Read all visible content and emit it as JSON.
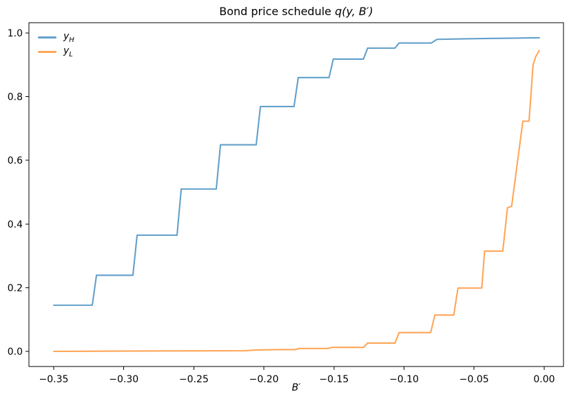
{
  "figure": {
    "title_text": "Bond price schedule ",
    "title_math": "q(y, B′)",
    "xlabel": "B′"
  },
  "chart_data": {
    "type": "line",
    "title": "Bond price schedule q(y, B′)",
    "xlabel": "B′",
    "ylabel": "",
    "grid": false,
    "xlim": [
      -0.3677,
      0.0138
    ],
    "ylim": [
      -0.0475,
      1.0324
    ],
    "x_ticks": [
      {
        "value": -0.35,
        "label": "−0.35"
      },
      {
        "value": -0.3,
        "label": "−0.30"
      },
      {
        "value": -0.25,
        "label": "−0.25"
      },
      {
        "value": -0.2,
        "label": "−0.20"
      },
      {
        "value": -0.15,
        "label": "−0.15"
      },
      {
        "value": -0.1,
        "label": "−0.10"
      },
      {
        "value": -0.05,
        "label": "−0.05"
      },
      {
        "value": 0.0,
        "label": "0.00"
      }
    ],
    "y_ticks": [
      {
        "value": 0.0,
        "label": "0.0"
      },
      {
        "value": 0.2,
        "label": "0.2"
      },
      {
        "value": 0.4,
        "label": "0.4"
      },
      {
        "value": 0.6,
        "label": "0.6"
      },
      {
        "value": 0.8,
        "label": "0.8"
      },
      {
        "value": 1.0,
        "label": "1.0"
      }
    ],
    "legend": {
      "position": "upper-left",
      "frame": false,
      "entries": [
        {
          "label_main": "y",
          "label_sub": "H",
          "color": "#62a0cb"
        },
        {
          "label_main": "y",
          "label_sub": "L",
          "color": "#ffa557"
        }
      ]
    },
    "series": [
      {
        "name": "y_H",
        "color": "#62a0cb",
        "linewidth": 2.1,
        "points": [
          [
            -0.35,
            0.145
          ],
          [
            -0.3225,
            0.145
          ],
          [
            -0.3195,
            0.239
          ],
          [
            -0.2935,
            0.239
          ],
          [
            -0.2905,
            0.365
          ],
          [
            -0.262,
            0.365
          ],
          [
            -0.259,
            0.51
          ],
          [
            -0.234,
            0.51
          ],
          [
            -0.231,
            0.649
          ],
          [
            -0.2055,
            0.649
          ],
          [
            -0.2025,
            0.769
          ],
          [
            -0.1785,
            0.769
          ],
          [
            -0.1755,
            0.86
          ],
          [
            -0.1535,
            0.86
          ],
          [
            -0.1505,
            0.918
          ],
          [
            -0.129,
            0.918
          ],
          [
            -0.126,
            0.9525
          ],
          [
            -0.1065,
            0.9525
          ],
          [
            -0.1035,
            0.9685
          ],
          [
            -0.0805,
            0.9685
          ],
          [
            -0.0765,
            0.98
          ],
          [
            -0.0595,
            0.9815
          ],
          [
            -0.044,
            0.9825
          ],
          [
            -0.02,
            0.984
          ],
          [
            -0.0035,
            0.985
          ]
        ]
      },
      {
        "name": "y_L",
        "color": "#ffa557",
        "linewidth": 2.1,
        "points": [
          [
            -0.35,
            0.0
          ],
          [
            -0.3,
            0.001
          ],
          [
            -0.26,
            0.0015
          ],
          [
            -0.213,
            0.002
          ],
          [
            -0.205,
            0.0045
          ],
          [
            -0.19,
            0.0055
          ],
          [
            -0.1775,
            0.0055
          ],
          [
            -0.175,
            0.009
          ],
          [
            -0.1545,
            0.009
          ],
          [
            -0.1515,
            0.0125
          ],
          [
            -0.129,
            0.0125
          ],
          [
            -0.126,
            0.026
          ],
          [
            -0.1065,
            0.026
          ],
          [
            -0.1035,
            0.059
          ],
          [
            -0.081,
            0.059
          ],
          [
            -0.078,
            0.114
          ],
          [
            -0.0645,
            0.114
          ],
          [
            -0.0615,
            0.199
          ],
          [
            -0.0445,
            0.199
          ],
          [
            -0.0425,
            0.315
          ],
          [
            -0.0295,
            0.315
          ],
          [
            -0.0262,
            0.451
          ],
          [
            -0.0232,
            0.456
          ],
          [
            -0.0152,
            0.723
          ],
          [
            -0.0108,
            0.723
          ],
          [
            -0.0079,
            0.9
          ],
          [
            -0.006,
            0.926
          ],
          [
            -0.0035,
            0.945
          ]
        ]
      }
    ]
  }
}
